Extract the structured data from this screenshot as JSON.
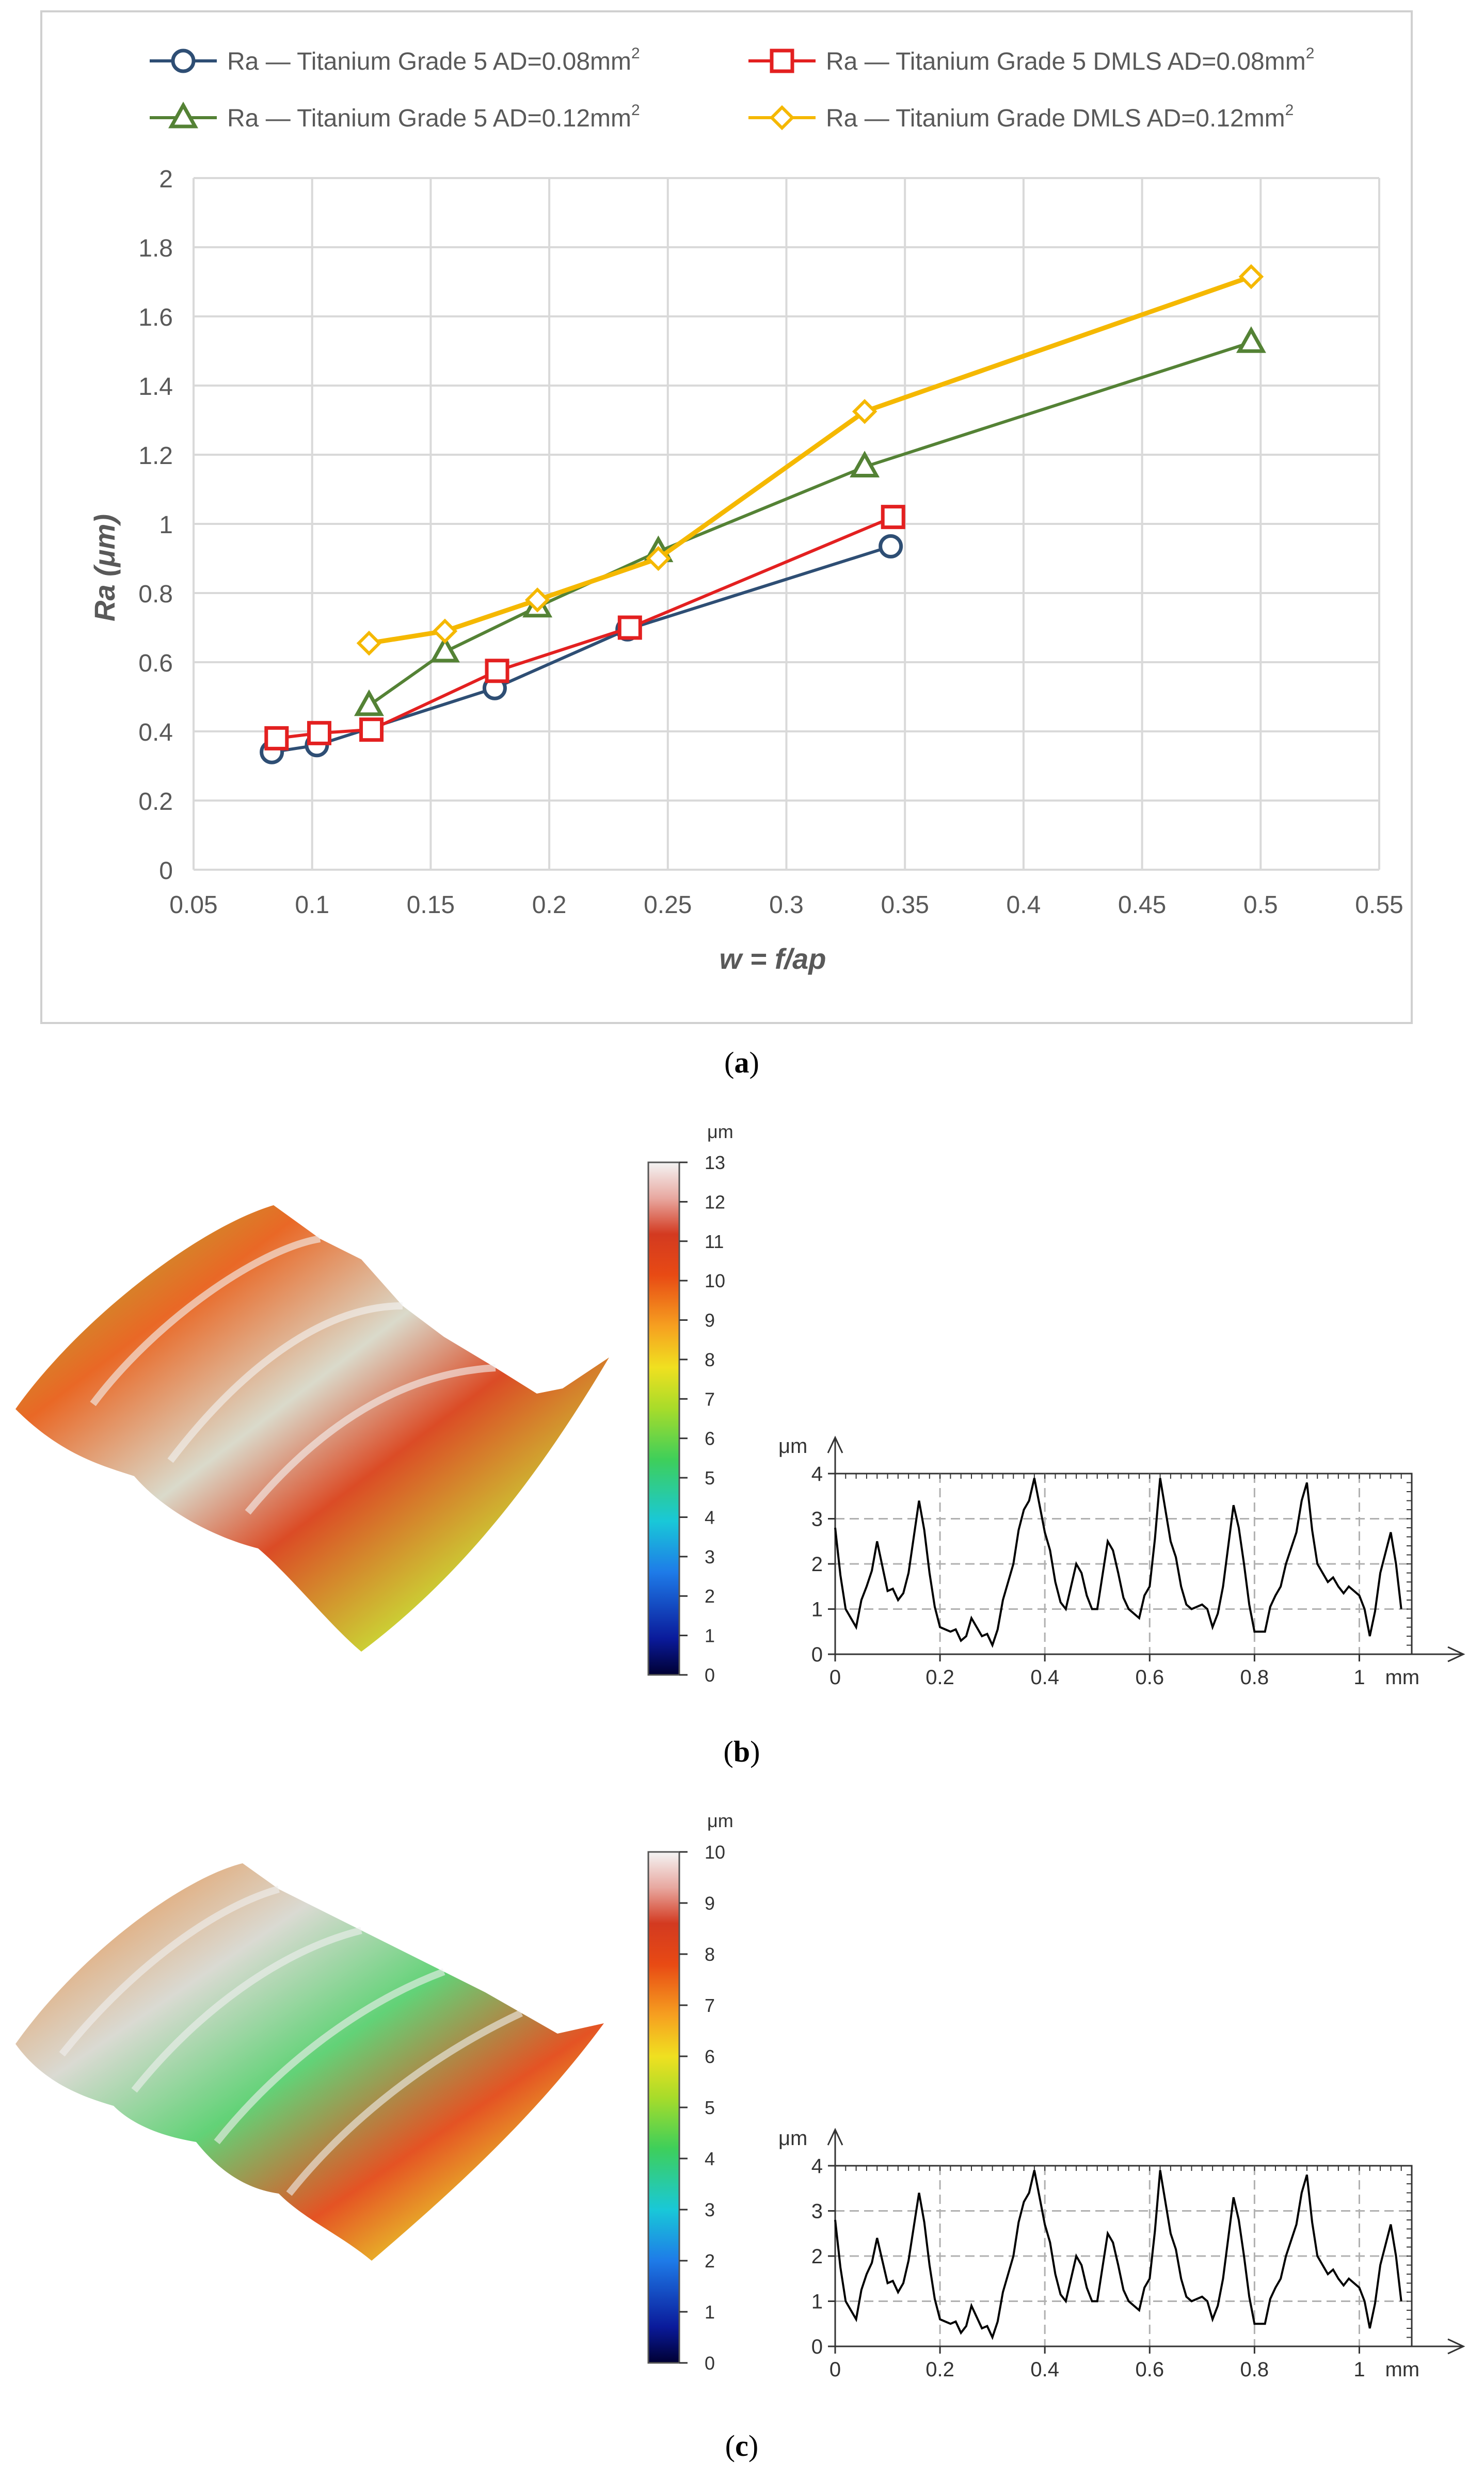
{
  "captions": {
    "a": "a",
    "b": "b",
    "c": "c"
  },
  "chart_data": [
    {
      "type": "line",
      "title": "",
      "xlabel": "w = f/ap",
      "ylabel": "Ra (μm)",
      "xlim": [
        0.05,
        0.55
      ],
      "ylim": [
        0,
        2
      ],
      "xticks": [
        "0.05",
        "0.1",
        "0.15",
        "0.2",
        "0.25",
        "0.3",
        "0.35",
        "0.4",
        "0.45",
        "0.5",
        "0.55"
      ],
      "yticks": [
        "0",
        "0.2",
        "0.4",
        "0.6",
        "0.8",
        "1",
        "1.2",
        "1.4",
        "1.6",
        "1.8",
        "2"
      ],
      "grid": true,
      "legend": "top",
      "series": [
        {
          "name": "Ra — Titanium Grade 5 AD=0.08mm",
          "sup": "2",
          "marker": "circle",
          "color": "#2e4e74",
          "x": [
            0.083,
            0.102,
            0.177,
            0.233,
            0.344
          ],
          "y": [
            0.34,
            0.36,
            0.525,
            0.695,
            0.935
          ]
        },
        {
          "name": "Ra — Titanium Grade 5 DMLS AD=0.08mm",
          "sup": "2",
          "marker": "square",
          "color": "#e32020",
          "x": [
            0.085,
            0.103,
            0.125,
            0.178,
            0.234,
            0.345
          ],
          "y": [
            0.38,
            0.395,
            0.405,
            0.575,
            0.7,
            1.02
          ]
        },
        {
          "name": "Ra — Titanium Grade 5 AD=0.12mm",
          "sup": "2",
          "marker": "triangle",
          "color": "#548235",
          "x": [
            0.124,
            0.156,
            0.195,
            0.246,
            0.333,
            0.496
          ],
          "y": [
            0.475,
            0.63,
            0.76,
            0.92,
            1.165,
            1.525
          ]
        },
        {
          "name": "Ra — Titanium Grade DMLS AD=0.12mm",
          "sup": "2",
          "marker": "diamond",
          "color": "#f5b800",
          "x": [
            0.124,
            0.156,
            0.195,
            0.246,
            0.333,
            0.496
          ],
          "y": [
            0.655,
            0.69,
            0.78,
            0.9,
            1.325,
            1.715
          ]
        }
      ]
    },
    {
      "type": "line",
      "panel": "b",
      "xlabel": "mm",
      "ylabel": "μm",
      "xlim": [
        0,
        1.1
      ],
      "ylim": [
        0,
        4
      ],
      "xticks": [
        "0",
        "0.2",
        "0.4",
        "0.6",
        "0.8",
        "1"
      ],
      "yticks": [
        "0",
        "1",
        "2",
        "3",
        "4"
      ],
      "colorbar": {
        "unit": "μm",
        "ticks": [
          "0",
          "1",
          "2",
          "3",
          "4",
          "5",
          "6",
          "7",
          "8",
          "9",
          "10",
          "11",
          "12",
          "13"
        ]
      },
      "series": [
        {
          "name": "",
          "color": "#000000",
          "x": [
            0,
            0.02,
            0.04,
            0.06,
            0.08,
            0.1,
            0.12,
            0.14,
            0.16,
            0.18,
            0.2,
            0.22,
            0.24,
            0.26,
            0.28,
            0.3,
            0.32,
            0.34,
            0.36,
            0.38,
            0.4,
            0.42,
            0.44,
            0.46,
            0.48,
            0.5,
            0.52,
            0.54,
            0.56,
            0.58,
            0.6,
            0.62,
            0.64,
            0.66,
            0.68,
            0.7,
            0.72,
            0.74,
            0.76,
            0.78,
            0.8,
            0.82,
            0.84,
            0.86,
            0.88,
            0.9,
            0.92,
            0.94,
            0.96,
            0.98,
            1.0,
            1.02,
            1.04,
            1.06,
            1.08
          ],
          "y": [
            2.8,
            1.0,
            0.6,
            1.5,
            2.5,
            1.4,
            1.2,
            1.8,
            3.4,
            1.8,
            0.6,
            0.5,
            0.3,
            0.8,
            0.4,
            0.2,
            1.2,
            2.0,
            3.2,
            3.9,
            2.7,
            1.6,
            1.0,
            2.0,
            1.3,
            1.0,
            2.5,
            1.8,
            1.0,
            0.8,
            1.5,
            3.9,
            2.5,
            1.5,
            1.0,
            1.1,
            0.6,
            1.5,
            3.3,
            2.0,
            0.5,
            0.5,
            1.3,
            2.0,
            2.7,
            3.8,
            2.0,
            1.6,
            1.5,
            1.5,
            1.3,
            0.4,
            1.8,
            2.7,
            1.0
          ]
        }
      ]
    },
    {
      "type": "line",
      "panel": "c",
      "xlabel": "mm",
      "ylabel": "μm",
      "xlim": [
        0,
        1.1
      ],
      "ylim": [
        0,
        4
      ],
      "xticks": [
        "0",
        "0.2",
        "0.4",
        "0.6",
        "0.8",
        "1"
      ],
      "yticks": [
        "0",
        "1",
        "2",
        "3",
        "4"
      ],
      "colorbar": {
        "unit": "μm",
        "ticks": [
          "0",
          "1",
          "2",
          "3",
          "4",
          "5",
          "6",
          "7",
          "8",
          "9",
          "10"
        ]
      },
      "series": [
        {
          "name": "",
          "color": "#000000",
          "x": [
            0,
            0.02,
            0.04,
            0.06,
            0.08,
            0.1,
            0.12,
            0.14,
            0.16,
            0.18,
            0.2,
            0.22,
            0.24,
            0.26,
            0.28,
            0.3,
            0.32,
            0.34,
            0.36,
            0.38,
            0.4,
            0.42,
            0.44,
            0.46,
            0.48,
            0.5,
            0.52,
            0.54,
            0.56,
            0.58,
            0.6,
            0.62,
            0.64,
            0.66,
            0.68,
            0.7,
            0.72,
            0.74,
            0.76,
            0.78,
            0.8,
            0.82,
            0.84,
            0.86,
            0.88,
            0.9,
            0.92,
            0.94,
            0.96,
            0.98,
            1.0,
            1.02,
            1.04,
            1.06,
            1.08
          ],
          "y": [
            2.8,
            1.0,
            0.6,
            1.6,
            2.4,
            1.4,
            1.2,
            1.9,
            3.4,
            1.8,
            0.6,
            0.5,
            0.3,
            0.9,
            0.4,
            0.2,
            1.2,
            2.0,
            3.2,
            3.9,
            2.7,
            1.6,
            1.0,
            2.0,
            1.3,
            1.0,
            2.5,
            1.8,
            1.0,
            0.8,
            1.5,
            3.9,
            2.5,
            1.5,
            1.0,
            1.1,
            0.6,
            1.5,
            3.3,
            2.0,
            0.5,
            0.5,
            1.3,
            2.0,
            2.7,
            3.8,
            2.0,
            1.6,
            1.5,
            1.5,
            1.3,
            0.4,
            1.8,
            2.7,
            1.0
          ]
        }
      ]
    }
  ]
}
